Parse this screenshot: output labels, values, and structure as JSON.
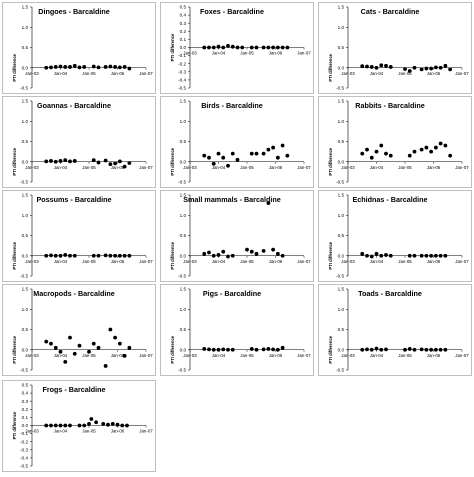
{
  "chart_data": [
    {
      "type": "scatter",
      "title": "Dingoes - Barcaldine",
      "ylabel": "PTI difference",
      "ylim": [
        -0.5,
        1.5
      ],
      "yticks": [
        "1.5",
        "1.0",
        "0.5",
        "0.0",
        "-0.5"
      ],
      "x_tick_labels": [
        "Jan-03",
        "Jan-04",
        "Jan-05",
        "Jan-06",
        "Jan-07"
      ],
      "x_tick_dates": [
        "2003-01",
        "2004-01",
        "2005-01",
        "2006-01",
        "2007-01"
      ],
      "x_ticks_at_zero": true,
      "points": [
        [
          "2003-07",
          0.0
        ],
        [
          "2003-09",
          0.01
        ],
        [
          "2003-11",
          0.02
        ],
        [
          "2004-01",
          0.03
        ],
        [
          "2004-03",
          0.02
        ],
        [
          "2004-05",
          0.02
        ],
        [
          "2004-07",
          0.05
        ],
        [
          "2004-09",
          0.01
        ],
        [
          "2004-11",
          0.02
        ],
        [
          "2005-03",
          0.03
        ],
        [
          "2005-05",
          0.01
        ],
        [
          "2005-08",
          0.02
        ],
        [
          "2005-10",
          0.03
        ],
        [
          "2005-12",
          0.02
        ],
        [
          "2006-02",
          0.01
        ],
        [
          "2006-04",
          0.02
        ],
        [
          "2006-06",
          -0.02
        ]
      ]
    },
    {
      "type": "scatter",
      "title": "Foxes - Barcaldine",
      "ylabel": "PTI difference",
      "ylim": [
        -0.5,
        0.5
      ],
      "yticks": [
        "0.5",
        "0.4",
        "0.3",
        "0.2",
        "0.1",
        "0.0",
        "-0.1",
        "-0.2",
        "-0.3",
        "-0.4",
        "-0.5"
      ],
      "x_tick_labels": [
        "Jan-03",
        "Jan-04",
        "Jan-05",
        "Jan-06",
        "Jan-07"
      ],
      "x_tick_dates": [
        "2003-01",
        "2004-01",
        "2005-01",
        "2006-01",
        "2007-01"
      ],
      "x_ticks_at_zero": true,
      "points": [
        [
          "2003-07",
          0.0
        ],
        [
          "2003-09",
          0.0
        ],
        [
          "2003-11",
          0.0
        ],
        [
          "2004-01",
          0.01
        ],
        [
          "2004-03",
          0.0
        ],
        [
          "2004-05",
          0.02
        ],
        [
          "2004-07",
          0.01
        ],
        [
          "2004-09",
          0.0
        ],
        [
          "2004-11",
          0.0
        ],
        [
          "2005-03",
          0.0
        ],
        [
          "2005-05",
          0.0
        ],
        [
          "2005-08",
          0.0
        ],
        [
          "2005-10",
          0.0
        ],
        [
          "2005-12",
          0.0
        ],
        [
          "2006-02",
          0.0
        ],
        [
          "2006-04",
          0.0
        ],
        [
          "2006-06",
          0.0
        ]
      ]
    },
    {
      "type": "scatter",
      "title": "Cats - Barcaldine",
      "ylabel": "PTI difference",
      "ylim": [
        -0.5,
        1.5
      ],
      "yticks": [
        "1.5",
        "1.0",
        "0.5",
        "0.0",
        "-0.5"
      ],
      "x_tick_labels": [
        "Jan-03",
        "Jan-04",
        "Jan-05",
        "Jan-06",
        "Jan-07"
      ],
      "x_tick_dates": [
        "2003-01",
        "2004-01",
        "2005-01",
        "2006-01",
        "2007-01"
      ],
      "x_ticks_at_zero": true,
      "points": [
        [
          "2003-07",
          0.04
        ],
        [
          "2003-09",
          0.03
        ],
        [
          "2003-11",
          0.02
        ],
        [
          "2004-01",
          0.0
        ],
        [
          "2004-03",
          0.06
        ],
        [
          "2004-05",
          0.05
        ],
        [
          "2004-07",
          0.02
        ],
        [
          "2005-01",
          -0.03
        ],
        [
          "2005-03",
          -0.08
        ],
        [
          "2005-05",
          0.0
        ],
        [
          "2005-08",
          -0.04
        ],
        [
          "2005-10",
          -0.02
        ],
        [
          "2005-12",
          -0.02
        ],
        [
          "2006-02",
          0.01
        ],
        [
          "2006-04",
          0.0
        ],
        [
          "2006-06",
          0.05
        ],
        [
          "2006-08",
          -0.04
        ]
      ]
    },
    {
      "type": "scatter",
      "title": "Goannas - Barcaldine",
      "ylabel": "PTI difference",
      "ylim": [
        -0.5,
        1.5
      ],
      "yticks": [
        "1.5",
        "1.0",
        "0.5",
        "0.0",
        "-0.5"
      ],
      "x_tick_labels": [
        "Jan-03",
        "Jan-04",
        "Jan-05",
        "Jan-06",
        "Jan-07"
      ],
      "x_tick_dates": [
        "2003-01",
        "2004-01",
        "2005-01",
        "2006-01",
        "2007-01"
      ],
      "x_ticks_at_zero": true,
      "points": [
        [
          "2003-07",
          0.01
        ],
        [
          "2003-09",
          0.02
        ],
        [
          "2003-11",
          0.0
        ],
        [
          "2004-01",
          0.02
        ],
        [
          "2004-03",
          0.04
        ],
        [
          "2004-05",
          0.01
        ],
        [
          "2004-07",
          0.02
        ],
        [
          "2005-03",
          0.04
        ],
        [
          "2005-05",
          -0.02
        ],
        [
          "2005-08",
          0.03
        ],
        [
          "2005-10",
          -0.06
        ],
        [
          "2005-12",
          -0.04
        ],
        [
          "2006-02",
          0.01
        ],
        [
          "2006-04",
          -0.12
        ],
        [
          "2006-06",
          -0.03
        ]
      ]
    },
    {
      "type": "scatter",
      "title": "Birds - Barcaldine",
      "ylabel": "PTI difference",
      "ylim": [
        -0.5,
        1.5
      ],
      "yticks": [
        "1.5",
        "1.0",
        "0.5",
        "0.0",
        "-0.5"
      ],
      "x_tick_labels": [
        "Jan-03",
        "Jan-04",
        "Jan-05",
        "Jan-06",
        "Jan-07"
      ],
      "x_tick_dates": [
        "2003-01",
        "2004-01",
        "2005-01",
        "2006-01",
        "2007-01"
      ],
      "x_ticks_at_zero": true,
      "points": [
        [
          "2003-07",
          0.15
        ],
        [
          "2003-09",
          0.1
        ],
        [
          "2003-11",
          -0.05
        ],
        [
          "2004-01",
          0.2
        ],
        [
          "2004-03",
          0.1
        ],
        [
          "2004-05",
          -0.1
        ],
        [
          "2004-07",
          0.2
        ],
        [
          "2004-09",
          0.05
        ],
        [
          "2005-03",
          0.2
        ],
        [
          "2005-05",
          0.2
        ],
        [
          "2005-08",
          0.2
        ],
        [
          "2005-10",
          0.3
        ],
        [
          "2005-12",
          0.35
        ],
        [
          "2006-02",
          0.1
        ],
        [
          "2006-04",
          0.4
        ],
        [
          "2006-06",
          0.15
        ]
      ]
    },
    {
      "type": "scatter",
      "title": "Rabbits - Barcaldine",
      "ylabel": "PTI difference",
      "ylim": [
        -0.5,
        1.5
      ],
      "yticks": [
        "1.5",
        "1.0",
        "0.5",
        "0.0",
        "-0.5"
      ],
      "x_tick_labels": [
        "Jan-03",
        "Jan-04",
        "Jan-05",
        "Jan-06",
        "Jan-07"
      ],
      "x_tick_dates": [
        "2003-01",
        "2004-01",
        "2005-01",
        "2006-01",
        "2007-01"
      ],
      "x_ticks_at_zero": true,
      "points": [
        [
          "2003-07",
          0.2
        ],
        [
          "2003-09",
          0.3
        ],
        [
          "2003-11",
          0.1
        ],
        [
          "2004-01",
          0.25
        ],
        [
          "2004-03",
          0.4
        ],
        [
          "2004-05",
          0.2
        ],
        [
          "2004-07",
          0.15
        ],
        [
          "2005-03",
          0.15
        ],
        [
          "2005-05",
          0.25
        ],
        [
          "2005-08",
          0.3
        ],
        [
          "2005-10",
          0.35
        ],
        [
          "2005-12",
          0.25
        ],
        [
          "2006-02",
          0.35
        ],
        [
          "2006-04",
          0.45
        ],
        [
          "2006-06",
          0.4
        ],
        [
          "2006-08",
          0.15
        ]
      ]
    },
    {
      "type": "scatter",
      "title": "Possums - Barcaldine",
      "ylabel": "PTI difference",
      "ylim": [
        -0.5,
        1.5
      ],
      "yticks": [
        "1.5",
        "1.0",
        "0.5",
        "0.0",
        "-0.5"
      ],
      "x_tick_labels": [
        "Jan-03",
        "Jan-04",
        "Jan-05",
        "Jan-06",
        "Jan-07"
      ],
      "x_tick_dates": [
        "2003-01",
        "2004-01",
        "2005-01",
        "2006-01",
        "2007-01"
      ],
      "x_ticks_at_zero": true,
      "points": [
        [
          "2003-07",
          0.0
        ],
        [
          "2003-09",
          0.01
        ],
        [
          "2003-11",
          0.0
        ],
        [
          "2004-01",
          0.0
        ],
        [
          "2004-03",
          0.02
        ],
        [
          "2004-05",
          0.0
        ],
        [
          "2004-07",
          0.0
        ],
        [
          "2005-03",
          0.0
        ],
        [
          "2005-05",
          0.0
        ],
        [
          "2005-08",
          0.01
        ],
        [
          "2005-10",
          0.0
        ],
        [
          "2005-12",
          0.0
        ],
        [
          "2006-02",
          0.0
        ],
        [
          "2006-04",
          0.0
        ],
        [
          "2006-06",
          0.0
        ]
      ]
    },
    {
      "type": "scatter",
      "title": "Small mammals - Barcaldine",
      "ylabel": "PTI difference",
      "ylim": [
        -0.5,
        1.5
      ],
      "yticks": [
        "1.5",
        "1.0",
        "0.5",
        "0.0",
        "-0.5"
      ],
      "x_tick_labels": [
        "Jan-03",
        "Jan-04",
        "Jan-05",
        "Jan-06",
        "Jan-07"
      ],
      "x_tick_dates": [
        "2003-01",
        "2004-01",
        "2005-01",
        "2006-01",
        "2007-01"
      ],
      "x_ticks_at_zero": true,
      "points": [
        [
          "2003-07",
          0.05
        ],
        [
          "2003-09",
          0.08
        ],
        [
          "2003-11",
          0.0
        ],
        [
          "2004-01",
          0.02
        ],
        [
          "2004-03",
          0.1
        ],
        [
          "2004-05",
          -0.02
        ],
        [
          "2004-07",
          0.0
        ],
        [
          "2005-01",
          0.15
        ],
        [
          "2005-03",
          0.1
        ],
        [
          "2005-05",
          0.05
        ],
        [
          "2005-08",
          0.12
        ],
        [
          "2005-10",
          1.3
        ],
        [
          "2005-12",
          0.15
        ],
        [
          "2006-02",
          0.05
        ],
        [
          "2006-04",
          0.0
        ]
      ]
    },
    {
      "type": "scatter",
      "title": "Echidnas - Barcaldine",
      "ylabel": "PTI difference",
      "ylim": [
        -0.5,
        1.5
      ],
      "yticks": [
        "1.5",
        "1.0",
        "0.5",
        "0.0",
        "-0.5"
      ],
      "x_tick_labels": [
        "Jan-03",
        "Jan-04",
        "Jan-05",
        "Jan-06",
        "Jan-07"
      ],
      "x_tick_dates": [
        "2003-01",
        "2004-01",
        "2005-01",
        "2006-01",
        "2007-01"
      ],
      "x_ticks_at_zero": true,
      "points": [
        [
          "2003-07",
          0.05
        ],
        [
          "2003-09",
          0.0
        ],
        [
          "2003-11",
          -0.02
        ],
        [
          "2004-01",
          0.05
        ],
        [
          "2004-03",
          0.0
        ],
        [
          "2004-05",
          0.02
        ],
        [
          "2004-07",
          0.0
        ],
        [
          "2005-03",
          0.0
        ],
        [
          "2005-05",
          0.0
        ],
        [
          "2005-08",
          0.0
        ],
        [
          "2005-10",
          0.0
        ],
        [
          "2005-12",
          0.0
        ],
        [
          "2006-02",
          0.0
        ],
        [
          "2006-04",
          0.0
        ],
        [
          "2006-06",
          0.0
        ]
      ]
    },
    {
      "type": "scatter",
      "title": "Macropods - Barcaldine",
      "ylabel": "PTI difference",
      "ylim": [
        -0.5,
        1.5
      ],
      "yticks": [
        "1.5",
        "1.0",
        "0.5",
        "0.0",
        "-0.5"
      ],
      "x_tick_labels": [
        "Jan-03",
        "Jan-04",
        "Jan-05",
        "Jan-06",
        "Jan-07"
      ],
      "x_tick_dates": [
        "2003-01",
        "2004-01",
        "2005-01",
        "2006-01",
        "2007-01"
      ],
      "x_ticks_at_zero": true,
      "points": [
        [
          "2003-07",
          0.2
        ],
        [
          "2003-09",
          0.15
        ],
        [
          "2003-11",
          0.05
        ],
        [
          "2004-01",
          -0.05
        ],
        [
          "2004-03",
          -0.3
        ],
        [
          "2004-05",
          0.3
        ],
        [
          "2004-07",
          -0.1
        ],
        [
          "2004-09",
          0.1
        ],
        [
          "2005-01",
          -0.05
        ],
        [
          "2005-03",
          0.15
        ],
        [
          "2005-05",
          0.05
        ],
        [
          "2005-08",
          -0.4
        ],
        [
          "2005-10",
          0.5
        ],
        [
          "2005-12",
          0.3
        ],
        [
          "2006-02",
          0.15
        ],
        [
          "2006-04",
          -0.15
        ],
        [
          "2006-06",
          0.05
        ]
      ]
    },
    {
      "type": "scatter",
      "title": "Pigs - Barcaldine",
      "ylabel": "PTI difference",
      "ylim": [
        -0.5,
        1.5
      ],
      "yticks": [
        "1.5",
        "1.0",
        "0.5",
        "0.0",
        "-0.5"
      ],
      "x_tick_labels": [
        "Jan-03",
        "Jan-04",
        "Jan-05",
        "Jan-06",
        "Jan-07"
      ],
      "x_tick_dates": [
        "2003-01",
        "2004-01",
        "2005-01",
        "2006-01",
        "2007-01"
      ],
      "x_ticks_at_zero": true,
      "points": [
        [
          "2003-07",
          0.02
        ],
        [
          "2003-09",
          0.01
        ],
        [
          "2003-11",
          0.0
        ],
        [
          "2004-01",
          0.0
        ],
        [
          "2004-03",
          0.01
        ],
        [
          "2004-05",
          0.0
        ],
        [
          "2004-07",
          0.0
        ],
        [
          "2005-03",
          0.02
        ],
        [
          "2005-05",
          0.0
        ],
        [
          "2005-08",
          0.01
        ],
        [
          "2005-10",
          0.02
        ],
        [
          "2005-12",
          0.01
        ],
        [
          "2006-02",
          0.0
        ],
        [
          "2006-04",
          0.05
        ]
      ]
    },
    {
      "type": "scatter",
      "title": "Toads - Barcaldine",
      "ylabel": "PTI difference",
      "ylim": [
        -0.5,
        1.5
      ],
      "yticks": [
        "1.5",
        "1.0",
        "0.5",
        "0.0",
        "-0.5"
      ],
      "x_tick_labels": [
        "Jan-03",
        "Jan-04",
        "Jan-05",
        "Jan-06",
        "Jan-07"
      ],
      "x_tick_dates": [
        "2003-01",
        "2004-01",
        "2005-01",
        "2006-01",
        "2007-01"
      ],
      "x_ticks_at_zero": true,
      "points": [
        [
          "2003-07",
          0.0
        ],
        [
          "2003-09",
          0.01
        ],
        [
          "2003-11",
          0.0
        ],
        [
          "2004-01",
          0.03
        ],
        [
          "2004-03",
          0.0
        ],
        [
          "2004-05",
          0.01
        ],
        [
          "2005-01",
          0.0
        ],
        [
          "2005-03",
          0.02
        ],
        [
          "2005-05",
          0.0
        ],
        [
          "2005-08",
          0.01
        ],
        [
          "2005-10",
          0.0
        ],
        [
          "2005-12",
          0.0
        ],
        [
          "2006-02",
          0.0
        ],
        [
          "2006-04",
          0.0
        ],
        [
          "2006-06",
          0.0
        ]
      ]
    },
    {
      "type": "scatter",
      "title": "Frogs - Barcaldine",
      "ylabel": "PTI difference",
      "ylim": [
        -0.5,
        0.5
      ],
      "yticks": [
        "0.5",
        "0.4",
        "0.3",
        "0.2",
        "0.1",
        "0.0",
        "-0.1",
        "-0.2",
        "-0.3",
        "-0.4",
        "-0.5"
      ],
      "x_tick_labels": [
        "Jan-03",
        "Jan-04",
        "Jan-05",
        "Jan-06",
        "Jan-07"
      ],
      "x_tick_dates": [
        "2003-01",
        "2004-01",
        "2005-01",
        "2006-01",
        "2007-01"
      ],
      "x_ticks_at_zero": true,
      "points": [
        [
          "2003-07",
          0.0
        ],
        [
          "2003-09",
          0.0
        ],
        [
          "2003-11",
          0.0
        ],
        [
          "2004-01",
          0.0
        ],
        [
          "2004-03",
          0.0
        ],
        [
          "2004-05",
          0.0
        ],
        [
          "2004-09",
          0.0
        ],
        [
          "2004-11",
          0.0
        ],
        [
          "2005-01",
          0.02
        ],
        [
          "2005-02",
          0.08
        ],
        [
          "2005-04",
          0.04
        ],
        [
          "2005-07",
          0.02
        ],
        [
          "2005-09",
          0.01
        ],
        [
          "2005-11",
          0.02
        ],
        [
          "2006-01",
          0.01
        ],
        [
          "2006-03",
          0.0
        ],
        [
          "2006-05",
          0.0
        ]
      ]
    }
  ]
}
